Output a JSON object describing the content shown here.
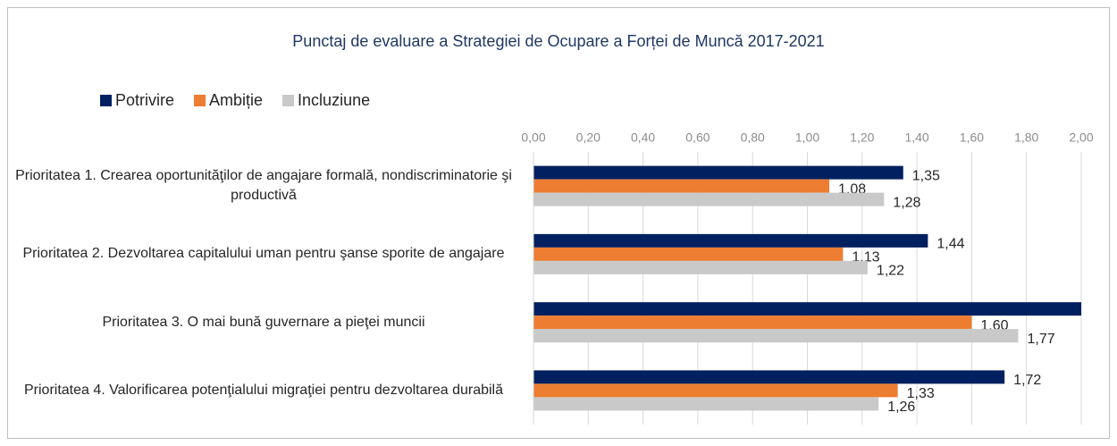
{
  "chart_data": {
    "type": "bar",
    "orientation": "horizontal",
    "title": "Punctaj de evaluare a Strategiei de Ocupare a Forței de Muncă 2017-2021",
    "categories": [
      "Prioritatea 1. Crearea oportunităţilor de angajare formală, nondiscriminatorie şi productivă",
      "Prioritatea 2. Dezvoltarea capitalului uman pentru şanse sporite de angajare",
      "Prioritatea 3. O mai bună guvernare a pieţei muncii",
      "Prioritatea 4. Valorificarea potenţialului migraţiei pentru dezvoltarea durabilă"
    ],
    "series": [
      {
        "name": "Potrivire",
        "color": "#002060",
        "values": [
          1.35,
          1.44,
          2.0,
          1.72
        ],
        "value_labels": [
          "1,35",
          "1,44",
          null,
          "1,72"
        ]
      },
      {
        "name": "Ambiție",
        "color": "#ED7D31",
        "values": [
          1.08,
          1.13,
          1.6,
          1.33
        ],
        "value_labels": [
          "1,08",
          "1,13",
          "1,60",
          "1,33"
        ]
      },
      {
        "name": "Incluziune",
        "color": "#C9C9C9",
        "values": [
          1.28,
          1.22,
          1.77,
          1.26
        ],
        "value_labels": [
          "1,28",
          "1,22",
          "1,77",
          "1,26"
        ]
      }
    ],
    "xlim": [
      0,
      2
    ],
    "xticks": [
      {
        "value": 0,
        "label": "0,00"
      },
      {
        "value": 0.2,
        "label": "0,20"
      },
      {
        "value": 0.4,
        "label": "0,40"
      },
      {
        "value": 0.6,
        "label": "0,60"
      },
      {
        "value": 0.8,
        "label": "0,80"
      },
      {
        "value": 1.0,
        "label": "1,00"
      },
      {
        "value": 1.2,
        "label": "1,20"
      },
      {
        "value": 1.4,
        "label": "1,40"
      },
      {
        "value": 1.6,
        "label": "1,60"
      },
      {
        "value": 1.8,
        "label": "1,80"
      },
      {
        "value": 2.0,
        "label": "2,00"
      }
    ],
    "grid": true,
    "legend": "top-left"
  }
}
